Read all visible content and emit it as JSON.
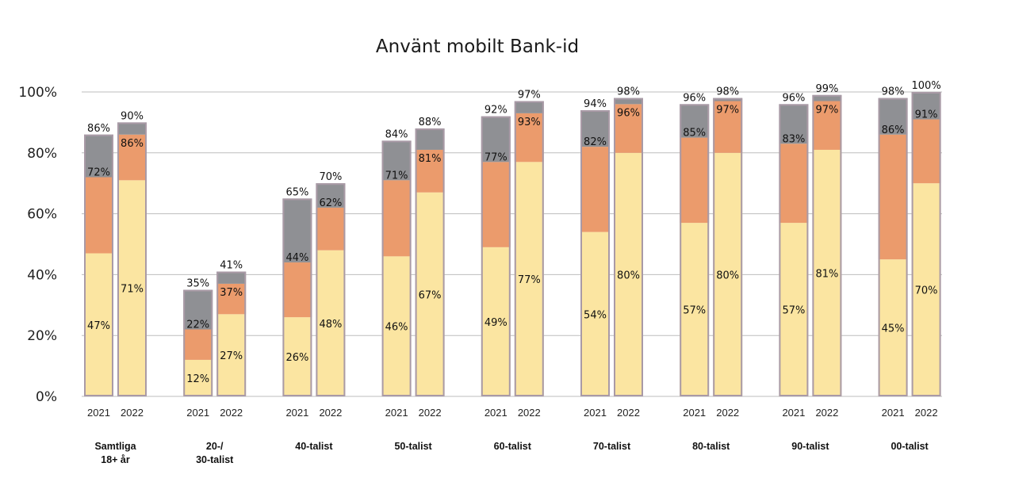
{
  "chart_data": {
    "type": "bar",
    "stacked": true,
    "title": "Använt mobilt Bank-id",
    "ylim": [
      0,
      100
    ],
    "yticks": [
      "0%",
      "20%",
      "40%",
      "60%",
      "80%",
      "100%"
    ],
    "ytick_values": [
      0,
      20,
      40,
      60,
      80,
      100
    ],
    "colors": {
      "yellow": "#fbe5a1",
      "orange": "#eb9b6c",
      "gray": "#8f9094",
      "edge": "#a99aa6",
      "grid": "#bdbdbd"
    },
    "groups": [
      {
        "name": "Samtliga\n18+ år",
        "bars": [
          {
            "year": "2021",
            "values": [
              47,
              72,
              86
            ]
          },
          {
            "year": "2022",
            "values": [
              71,
              86,
              90
            ]
          }
        ]
      },
      {
        "name": "20-/\n30-talist",
        "bars": [
          {
            "year": "2021",
            "values": [
              12,
              22,
              35
            ]
          },
          {
            "year": "2022",
            "values": [
              27,
              37,
              41
            ]
          }
        ]
      },
      {
        "name": "40-talist",
        "bars": [
          {
            "year": "2021",
            "values": [
              26,
              44,
              65
            ]
          },
          {
            "year": "2022",
            "values": [
              48,
              62,
              70
            ]
          }
        ]
      },
      {
        "name": "50-talist",
        "bars": [
          {
            "year": "2021",
            "values": [
              46,
              71,
              84
            ]
          },
          {
            "year": "2022",
            "values": [
              67,
              81,
              88
            ]
          }
        ]
      },
      {
        "name": "60-talist",
        "bars": [
          {
            "year": "2021",
            "values": [
              49,
              77,
              92
            ]
          },
          {
            "year": "2022",
            "values": [
              77,
              93,
              97
            ]
          }
        ]
      },
      {
        "name": "70-talist",
        "bars": [
          {
            "year": "2021",
            "values": [
              54,
              82,
              94
            ]
          },
          {
            "year": "2022",
            "values": [
              80,
              96,
              98
            ]
          }
        ]
      },
      {
        "name": "80-talist",
        "bars": [
          {
            "year": "2021",
            "values": [
              57,
              85,
              96
            ]
          },
          {
            "year": "2022",
            "values": [
              80,
              97,
              98
            ]
          }
        ]
      },
      {
        "name": "90-talist",
        "bars": [
          {
            "year": "2021",
            "values": [
              57,
              83,
              96
            ]
          },
          {
            "year": "2022",
            "values": [
              81,
              97,
              99
            ]
          }
        ]
      },
      {
        "name": "00-talist",
        "bars": [
          {
            "year": "2021",
            "values": [
              45,
              86,
              98
            ]
          },
          {
            "year": "2022",
            "values": [
              70,
              91,
              100
            ]
          }
        ]
      }
    ]
  }
}
